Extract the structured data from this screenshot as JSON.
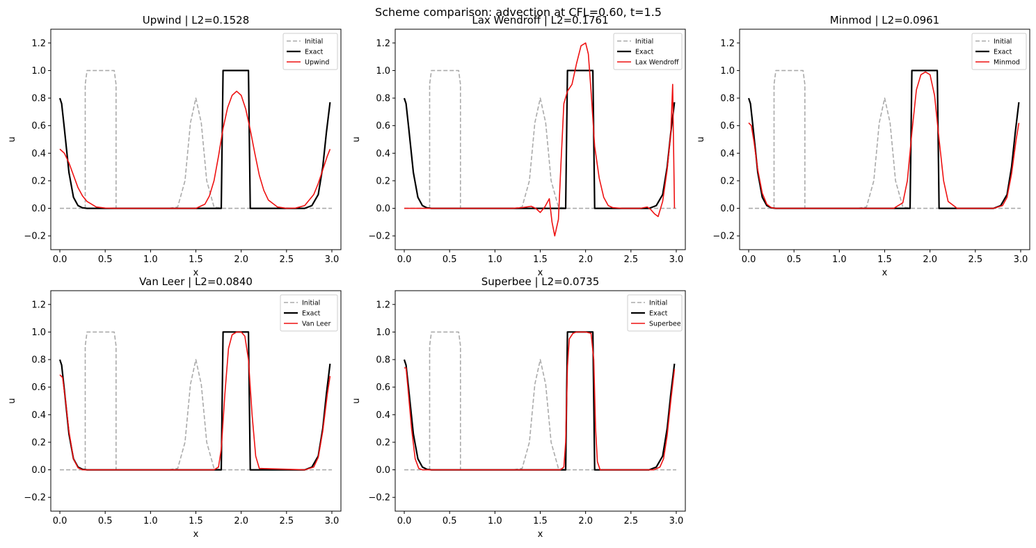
{
  "figure": {
    "suptitle": "Scheme comparison: advection at CFL=0.60, t=1.5"
  },
  "colors": {
    "initial": "#aaaaaa",
    "exact": "#000000",
    "scheme": "#ee1111",
    "axes": "#000000",
    "legend_border": "#cccccc"
  },
  "chart_data": [
    {
      "type": "line",
      "title": "Upwind  |  L2=0.1528",
      "xlabel": "x",
      "ylabel": "u",
      "xlim": [
        -0.1,
        3.1
      ],
      "ylim": [
        -0.3,
        1.3
      ],
      "xticks": [
        0.0,
        0.5,
        1.0,
        1.5,
        2.0,
        2.5,
        3.0
      ],
      "xtick_labels": [
        "0.0",
        "0.5",
        "1.0",
        "1.5",
        "2.0",
        "2.5",
        "3.0"
      ],
      "yticks": [
        -0.2,
        0.0,
        0.2,
        0.4,
        0.6,
        0.8,
        1.0,
        1.2
      ],
      "ytick_labels": [
        "−0.2",
        "0.0",
        "0.2",
        "0.4",
        "0.6",
        "0.8",
        "1.0",
        "1.2"
      ],
      "legend": [
        "Initial",
        "Exact",
        "Upwind"
      ],
      "legend_position": "top-right",
      "grid": false,
      "series": [
        {
          "name": "Initial",
          "style": "dashed",
          "x": [
            0,
            0.28,
            0.28,
            0.3,
            0.6,
            0.62,
            0.62,
            1.2,
            1.3,
            1.38,
            1.44,
            1.5,
            1.56,
            1.62,
            1.7,
            1.8,
            3.0
          ],
          "y": [
            0,
            0,
            0.9,
            1.0,
            1.0,
            0.9,
            0,
            0,
            0.01,
            0.2,
            0.62,
            0.8,
            0.62,
            0.2,
            0.01,
            0,
            0
          ]
        },
        {
          "name": "Exact",
          "style": "solid",
          "x": [
            0,
            0.02,
            0.05,
            0.1,
            0.15,
            0.2,
            0.25,
            0.3,
            1.78,
            1.8,
            2.08,
            2.1,
            2.7,
            2.78,
            2.85,
            2.9,
            2.94,
            2.98
          ],
          "y": [
            0.8,
            0.76,
            0.58,
            0.26,
            0.08,
            0.02,
            0.004,
            0,
            0,
            1.0,
            1.0,
            0,
            0,
            0.02,
            0.1,
            0.3,
            0.55,
            0.77
          ]
        },
        {
          "name": "Upwind",
          "style": "solid",
          "x": [
            0,
            0.05,
            0.1,
            0.15,
            0.2,
            0.25,
            0.3,
            0.4,
            0.5,
            0.6,
            1.5,
            1.6,
            1.65,
            1.7,
            1.75,
            1.8,
            1.85,
            1.9,
            1.95,
            2.0,
            2.05,
            2.1,
            2.15,
            2.2,
            2.25,
            2.3,
            2.4,
            2.5,
            2.6,
            2.7,
            2.8,
            2.85,
            2.9,
            2.95,
            2.98
          ],
          "y": [
            0.43,
            0.4,
            0.33,
            0.24,
            0.15,
            0.09,
            0.05,
            0.01,
            0.002,
            0,
            0,
            0.03,
            0.09,
            0.2,
            0.38,
            0.58,
            0.73,
            0.82,
            0.85,
            0.82,
            0.72,
            0.57,
            0.4,
            0.24,
            0.13,
            0.06,
            0.01,
            0,
            0.002,
            0.02,
            0.1,
            0.18,
            0.28,
            0.38,
            0.43
          ]
        }
      ]
    },
    {
      "type": "line",
      "title": "Lax Wendroff  |  L2=0.1761",
      "xlabel": "x",
      "ylabel": "u",
      "xlim": [
        -0.1,
        3.1
      ],
      "ylim": [
        -0.3,
        1.3
      ],
      "xticks": [
        0.0,
        0.5,
        1.0,
        1.5,
        2.0,
        2.5,
        3.0
      ],
      "xtick_labels": [
        "0.0",
        "0.5",
        "1.0",
        "1.5",
        "2.0",
        "2.5",
        "3.0"
      ],
      "yticks": [
        -0.2,
        0.0,
        0.2,
        0.4,
        0.6,
        0.8,
        1.0,
        1.2
      ],
      "ytick_labels": [
        "−0.2",
        "0.0",
        "0.2",
        "0.4",
        "0.6",
        "0.8",
        "1.0",
        "1.2"
      ],
      "legend": [
        "Initial",
        "Exact",
        "Lax Wendroff"
      ],
      "legend_position": "top-right",
      "grid": false,
      "series": [
        {
          "name": "Initial",
          "style": "dashed",
          "x": [
            0,
            0.28,
            0.28,
            0.3,
            0.6,
            0.62,
            0.62,
            1.2,
            1.3,
            1.38,
            1.44,
            1.5,
            1.56,
            1.62,
            1.7,
            1.8,
            3.0
          ],
          "y": [
            0,
            0,
            0.9,
            1.0,
            1.0,
            0.9,
            0,
            0,
            0.01,
            0.2,
            0.62,
            0.8,
            0.62,
            0.2,
            0.01,
            0,
            0
          ]
        },
        {
          "name": "Exact",
          "style": "solid",
          "x": [
            0,
            0.02,
            0.05,
            0.1,
            0.15,
            0.2,
            0.25,
            0.3,
            1.78,
            1.8,
            2.08,
            2.1,
            2.7,
            2.78,
            2.85,
            2.9,
            2.94,
            2.98
          ],
          "y": [
            0.8,
            0.76,
            0.58,
            0.26,
            0.08,
            0.02,
            0.004,
            0,
            0,
            1.0,
            1.0,
            0,
            0,
            0.02,
            0.1,
            0.3,
            0.55,
            0.77
          ]
        },
        {
          "name": "Lax Wendroff",
          "style": "solid",
          "x": [
            0,
            1.2,
            1.3,
            1.4,
            1.45,
            1.5,
            1.55,
            1.6,
            1.63,
            1.66,
            1.7,
            1.73,
            1.76,
            1.8,
            1.85,
            1.9,
            1.95,
            2.0,
            2.03,
            2.06,
            2.1,
            2.15,
            2.2,
            2.25,
            2.3,
            2.4,
            2.5,
            2.6,
            2.68,
            2.72,
            2.76,
            2.8,
            2.85,
            2.9,
            2.94,
            2.96,
            2.98
          ],
          "y": [
            0,
            0,
            0.005,
            0.015,
            0,
            -0.03,
            0.01,
            0.07,
            -0.1,
            -0.2,
            -0.08,
            0.35,
            0.76,
            0.85,
            0.9,
            1.05,
            1.18,
            1.2,
            1.12,
            0.85,
            0.45,
            0.22,
            0.08,
            0.02,
            0.005,
            0,
            0,
            0,
            0.01,
            -0.01,
            -0.04,
            -0.06,
            0.05,
            0.28,
            0.55,
            0.9,
            0.0
          ]
        }
      ]
    },
    {
      "type": "line",
      "title": "Minmod  |  L2=0.0961",
      "xlabel": "x",
      "ylabel": "u",
      "xlim": [
        -0.1,
        3.1
      ],
      "ylim": [
        -0.3,
        1.3
      ],
      "xticks": [
        0.0,
        0.5,
        1.0,
        1.5,
        2.0,
        2.5,
        3.0
      ],
      "xtick_labels": [
        "0.0",
        "0.5",
        "1.0",
        "1.5",
        "2.0",
        "2.5",
        "3.0"
      ],
      "yticks": [
        -0.2,
        0.0,
        0.2,
        0.4,
        0.6,
        0.8,
        1.0,
        1.2
      ],
      "ytick_labels": [
        "−0.2",
        "0.0",
        "0.2",
        "0.4",
        "0.6",
        "0.8",
        "1.0",
        "1.2"
      ],
      "legend": [
        "Initial",
        "Exact",
        "Minmod"
      ],
      "legend_position": "top-right",
      "grid": false,
      "series": [
        {
          "name": "Initial",
          "style": "dashed",
          "x": [
            0,
            0.28,
            0.28,
            0.3,
            0.6,
            0.62,
            0.62,
            1.2,
            1.3,
            1.38,
            1.44,
            1.5,
            1.56,
            1.62,
            1.7,
            1.8,
            3.0
          ],
          "y": [
            0,
            0,
            0.9,
            1.0,
            1.0,
            0.9,
            0,
            0,
            0.01,
            0.2,
            0.62,
            0.8,
            0.62,
            0.2,
            0.01,
            0,
            0
          ]
        },
        {
          "name": "Exact",
          "style": "solid",
          "x": [
            0,
            0.02,
            0.05,
            0.1,
            0.15,
            0.2,
            0.25,
            0.3,
            1.78,
            1.8,
            2.08,
            2.1,
            2.7,
            2.78,
            2.85,
            2.9,
            2.94,
            2.98
          ],
          "y": [
            0.8,
            0.76,
            0.58,
            0.26,
            0.08,
            0.02,
            0.004,
            0,
            0,
            1.0,
            1.0,
            0,
            0,
            0.02,
            0.1,
            0.3,
            0.55,
            0.77
          ]
        },
        {
          "name": "Minmod",
          "style": "solid",
          "x": [
            0,
            0.03,
            0.06,
            0.1,
            0.15,
            0.2,
            0.25,
            0.3,
            1.6,
            1.7,
            1.75,
            1.8,
            1.85,
            1.9,
            1.95,
            2.0,
            2.05,
            2.1,
            2.15,
            2.2,
            2.3,
            2.7,
            2.8,
            2.85,
            2.9,
            2.95,
            2.98
          ],
          "y": [
            0.62,
            0.6,
            0.48,
            0.28,
            0.11,
            0.03,
            0.005,
            0,
            0,
            0.04,
            0.2,
            0.55,
            0.86,
            0.97,
            0.99,
            0.97,
            0.82,
            0.5,
            0.2,
            0.05,
            0,
            0,
            0.02,
            0.08,
            0.25,
            0.5,
            0.62
          ]
        }
      ]
    },
    {
      "type": "line",
      "title": "Van Leer  |  L2=0.0840",
      "xlabel": "x",
      "ylabel": "u",
      "xlim": [
        -0.1,
        3.1
      ],
      "ylim": [
        -0.3,
        1.3
      ],
      "xticks": [
        0.0,
        0.5,
        1.0,
        1.5,
        2.0,
        2.5,
        3.0
      ],
      "xtick_labels": [
        "0.0",
        "0.5",
        "1.0",
        "1.5",
        "2.0",
        "2.5",
        "3.0"
      ],
      "yticks": [
        -0.2,
        0.0,
        0.2,
        0.4,
        0.6,
        0.8,
        1.0,
        1.2
      ],
      "ytick_labels": [
        "−0.2",
        "0.0",
        "0.2",
        "0.4",
        "0.6",
        "0.8",
        "1.0",
        "1.2"
      ],
      "legend": [
        "Initial",
        "Exact",
        "Van Leer"
      ],
      "legend_position": "top-right",
      "grid": false,
      "series": [
        {
          "name": "Initial",
          "style": "dashed",
          "x": [
            0,
            0.28,
            0.28,
            0.3,
            0.6,
            0.62,
            0.62,
            1.2,
            1.3,
            1.38,
            1.44,
            1.5,
            1.56,
            1.62,
            1.7,
            1.8,
            3.0
          ],
          "y": [
            0,
            0,
            0.9,
            1.0,
            1.0,
            0.9,
            0,
            0,
            0.01,
            0.2,
            0.62,
            0.8,
            0.62,
            0.2,
            0.01,
            0,
            0
          ]
        },
        {
          "name": "Exact",
          "style": "solid",
          "x": [
            0,
            0.02,
            0.05,
            0.1,
            0.15,
            0.2,
            0.25,
            0.3,
            1.78,
            1.8,
            2.08,
            2.1,
            2.7,
            2.78,
            2.85,
            2.9,
            2.94,
            2.98
          ],
          "y": [
            0.8,
            0.76,
            0.58,
            0.26,
            0.08,
            0.02,
            0.004,
            0,
            0,
            1.0,
            1.0,
            0,
            0,
            0.02,
            0.1,
            0.3,
            0.55,
            0.77
          ]
        },
        {
          "name": "Van Leer",
          "style": "solid",
          "x": [
            0,
            0.03,
            0.06,
            0.1,
            0.15,
            0.2,
            0.25,
            1.7,
            1.75,
            1.78,
            1.82,
            1.86,
            1.9,
            1.95,
            2.0,
            2.04,
            2.08,
            2.12,
            2.16,
            2.2,
            2.7,
            2.8,
            2.85,
            2.9,
            2.95,
            2.98
          ],
          "y": [
            0.69,
            0.67,
            0.52,
            0.28,
            0.08,
            0.015,
            0,
            0,
            0.02,
            0.15,
            0.55,
            0.88,
            0.98,
            1.0,
            1.0,
            0.97,
            0.8,
            0.4,
            0.1,
            0.01,
            0,
            0.02,
            0.09,
            0.28,
            0.55,
            0.68
          ]
        }
      ]
    },
    {
      "type": "line",
      "title": "Superbee  |  L2=0.0735",
      "xlabel": "x",
      "ylabel": "u",
      "xlim": [
        -0.1,
        3.1
      ],
      "ylim": [
        -0.3,
        1.3
      ],
      "xticks": [
        0.0,
        0.5,
        1.0,
        1.5,
        2.0,
        2.5,
        3.0
      ],
      "xtick_labels": [
        "0.0",
        "0.5",
        "1.0",
        "1.5",
        "2.0",
        "2.5",
        "3.0"
      ],
      "yticks": [
        -0.2,
        0.0,
        0.2,
        0.4,
        0.6,
        0.8,
        1.0,
        1.2
      ],
      "ytick_labels": [
        "−0.2",
        "0.0",
        "0.2",
        "0.4",
        "0.6",
        "0.8",
        "1.0",
        "1.2"
      ],
      "legend": [
        "Initial",
        "Exact",
        "Superbee"
      ],
      "legend_position": "top-right",
      "grid": false,
      "series": [
        {
          "name": "Initial",
          "style": "dashed",
          "x": [
            0,
            0.28,
            0.28,
            0.3,
            0.6,
            0.62,
            0.62,
            1.2,
            1.3,
            1.38,
            1.44,
            1.5,
            1.56,
            1.62,
            1.7,
            1.8,
            3.0
          ],
          "y": [
            0,
            0,
            0.9,
            1.0,
            1.0,
            0.9,
            0,
            0,
            0.01,
            0.2,
            0.62,
            0.8,
            0.62,
            0.2,
            0.01,
            0,
            0
          ]
        },
        {
          "name": "Exact",
          "style": "solid",
          "x": [
            0,
            0.02,
            0.05,
            0.1,
            0.15,
            0.2,
            0.25,
            0.3,
            1.78,
            1.8,
            2.08,
            2.1,
            2.7,
            2.78,
            2.85,
            2.9,
            2.94,
            2.98
          ],
          "y": [
            0.8,
            0.76,
            0.58,
            0.26,
            0.08,
            0.02,
            0.004,
            0,
            0,
            1.0,
            1.0,
            0,
            0,
            0.02,
            0.1,
            0.3,
            0.55,
            0.77
          ]
        },
        {
          "name": "Superbee",
          "style": "solid",
          "x": [
            0,
            0.02,
            0.04,
            0.08,
            0.12,
            0.16,
            0.2,
            1.72,
            1.76,
            1.78,
            1.8,
            1.82,
            1.86,
            1.9,
            2.0,
            2.06,
            2.09,
            2.11,
            2.13,
            2.16,
            2.75,
            2.82,
            2.86,
            2.9,
            2.94,
            2.98
          ],
          "y": [
            0.74,
            0.74,
            0.6,
            0.3,
            0.08,
            0.01,
            0,
            0,
            0.02,
            0.2,
            0.75,
            0.95,
            0.99,
            1.0,
            1.0,
            0.99,
            0.8,
            0.3,
            0.06,
            0,
            0,
            0.02,
            0.08,
            0.25,
            0.5,
            0.73
          ]
        }
      ]
    }
  ]
}
